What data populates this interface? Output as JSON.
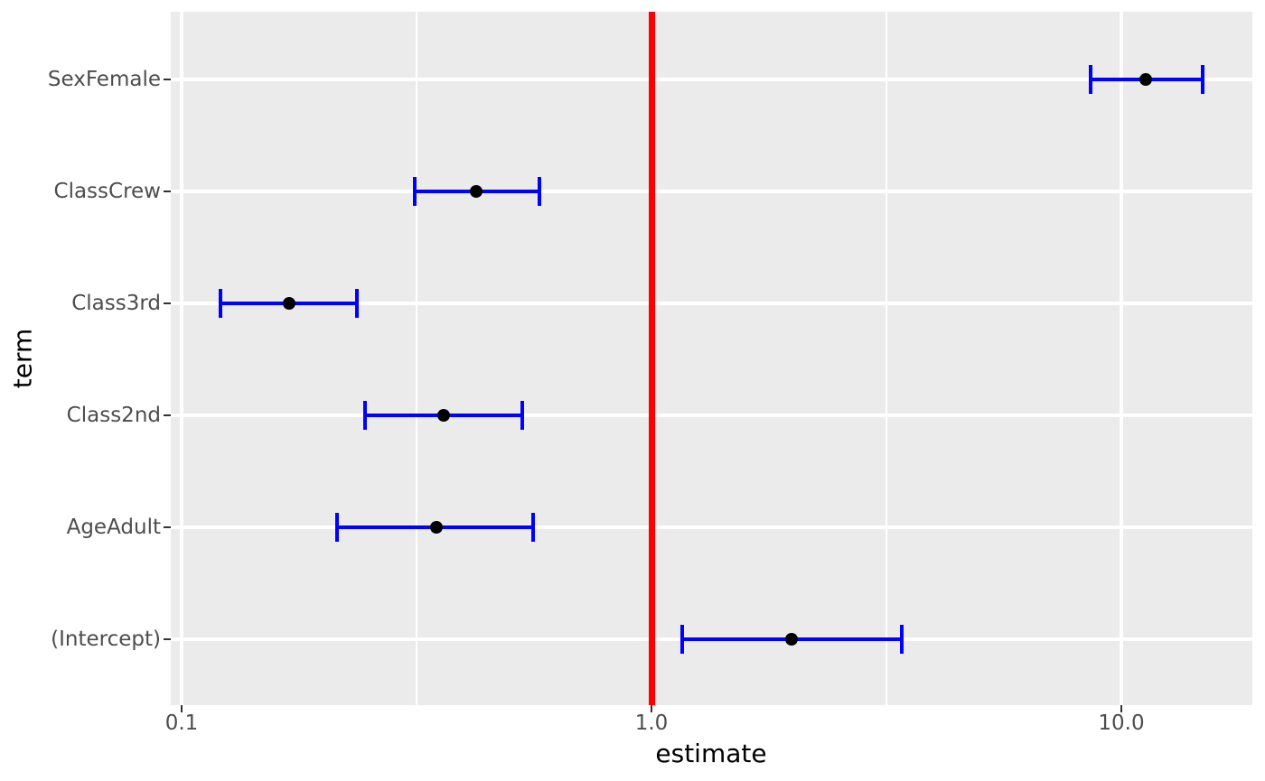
{
  "chart_data": {
    "type": "scatter",
    "subtype": "forest-plot-with-errorbars",
    "title": "",
    "xlabel": "estimate",
    "ylabel": "term",
    "x_scale": "log10",
    "x_range": [
      0.095,
      19.0
    ],
    "grid": true,
    "legend": "none",
    "x_ticks": [
      {
        "label": "0.1",
        "value": 0.1
      },
      {
        "label": "1.0",
        "value": 1.0
      },
      {
        "label": "10.0",
        "value": 10.0
      }
    ],
    "x_minor_breaks": [
      0.3162,
      3.1623
    ],
    "reference_line": {
      "x": 1.0
    },
    "terms": [
      {
        "label": "SexFemale",
        "estimate": 11.25,
        "conf_low": 8.6,
        "conf_high": 14.9
      },
      {
        "label": "ClassCrew",
        "estimate": 0.424,
        "conf_low": 0.313,
        "conf_high": 0.577
      },
      {
        "label": "Class3rd",
        "estimate": 0.169,
        "conf_low": 0.121,
        "conf_high": 0.236
      },
      {
        "label": "Class2nd",
        "estimate": 0.361,
        "conf_low": 0.246,
        "conf_high": 0.53
      },
      {
        "label": "AgeAdult",
        "estimate": 0.349,
        "conf_low": 0.214,
        "conf_high": 0.56
      },
      {
        "label": "(Intercept)",
        "estimate": 1.99,
        "conf_low": 1.16,
        "conf_high": 3.41
      }
    ],
    "colors": {
      "errorbar": "#0000FF",
      "point": "#000000",
      "panel_background": "#EBEBEB",
      "gridline": "#FFFFFF",
      "reference_line": "#FF0000",
      "axis_text": "#4D4D4D",
      "axis_title": "#000000",
      "tick_mark": "#333333",
      "figure_background": "#FFFFFF"
    }
  }
}
